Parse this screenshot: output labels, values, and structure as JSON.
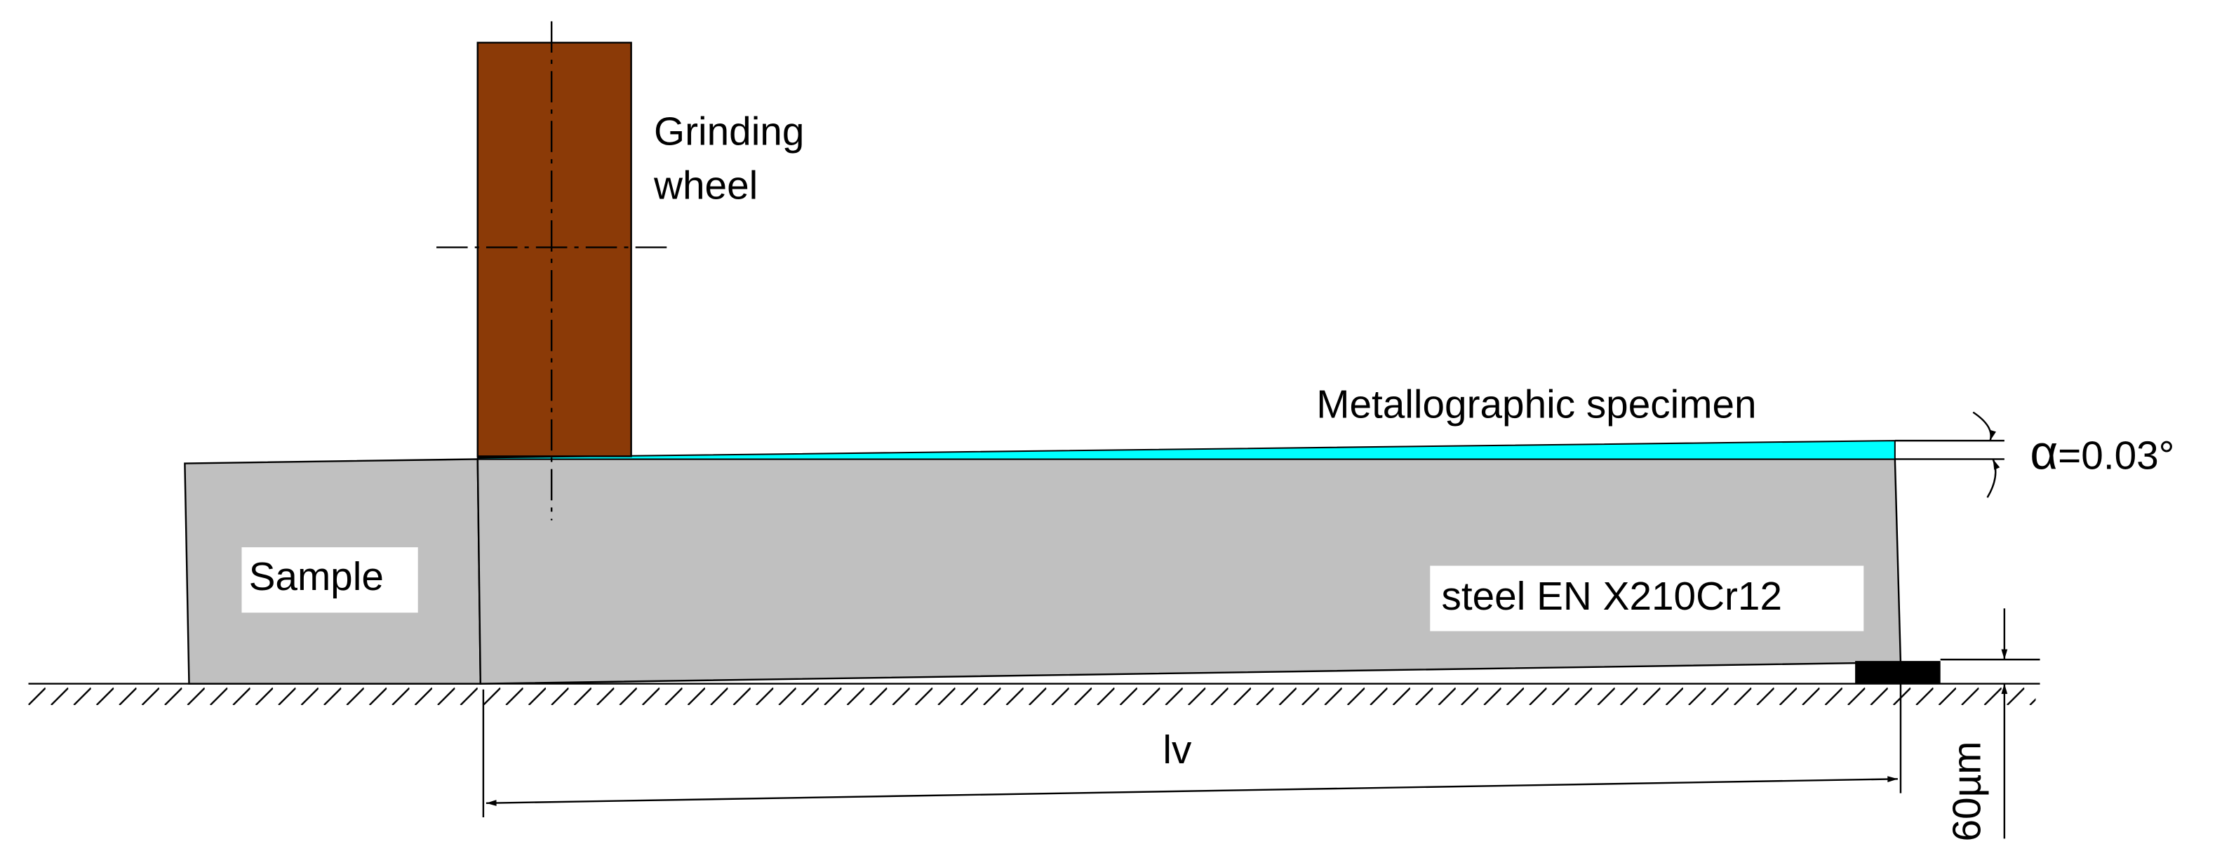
{
  "wheel_label": [
    "Grinding",
    "wheel"
  ],
  "specimen_label": "Metallographic specimen",
  "angle_label": {
    "symbol": "α",
    "text": "=0.03°"
  },
  "sample_label": "Sample",
  "material_label": "steel EN X210Cr12",
  "length_label": "lv",
  "height_label": "60µm"
}
